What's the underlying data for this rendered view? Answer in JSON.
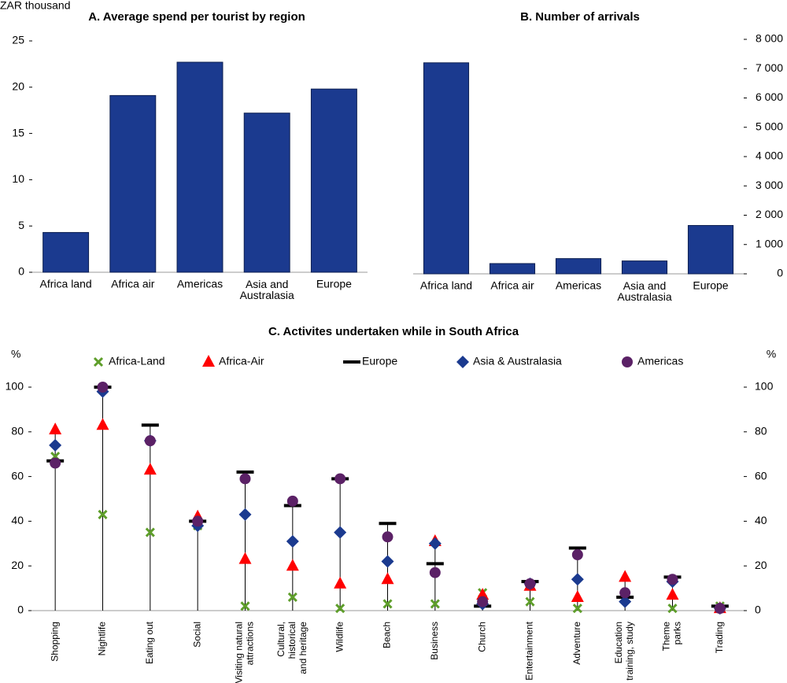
{
  "chart_data": [
    {
      "type": "bar",
      "title": "A. Average spend per tourist by region",
      "y_label": "ZAR thousand",
      "y_axis_side": "left",
      "categories": [
        "Africa land",
        "Africa air",
        "Americas",
        "Asia and\nAustralasia",
        "Europe"
      ],
      "values": [
        4.3,
        19.1,
        22.7,
        17.2,
        19.8
      ],
      "color": "#1b3a8f",
      "ylim": [
        0,
        25
      ],
      "yticks": [
        0,
        5,
        10,
        15,
        20,
        25
      ]
    },
    {
      "type": "bar",
      "title": "B. Number of arrivals",
      "y_axis_side": "right",
      "categories": [
        "Africa land",
        "Africa air",
        "Americas",
        "Asia and\nAustralasia",
        "Europe"
      ],
      "values": [
        7200,
        350,
        520,
        440,
        1650
      ],
      "color": "#1b3a8f",
      "ylim": [
        0,
        8000
      ],
      "yticks": [
        0,
        {
          "value": 1000,
          "label": "1 000"
        },
        {
          "value": 2000,
          "label": "2 000"
        },
        {
          "value": 3000,
          "label": "3 000"
        },
        {
          "value": 4000,
          "label": "4 000"
        },
        {
          "value": 5000,
          "label": "5 000"
        },
        {
          "value": 6000,
          "label": "6 000"
        },
        {
          "value": 7000,
          "label": "7 000"
        },
        {
          "value": 8000,
          "label": "8 000"
        }
      ]
    },
    {
      "type": "dot",
      "title": "C. Activites undertaken while in South Africa",
      "y_label": "%",
      "y_axis_side": "both",
      "categories": [
        "Shopping",
        "Nightlife",
        "Eating out",
        "Social",
        "Visiting natural\nattractions",
        "Cultural,\nhistorical\nand heritage",
        "Wildlife",
        "Beach",
        "Business",
        "Church",
        "Entertainment",
        "Adventure",
        "Education\ntraining, study",
        "Theme\nparks",
        "Trading"
      ],
      "series": [
        {
          "name": "Africa-Land",
          "color": "#5e9e2a",
          "marker": "x",
          "values": [
            69,
            43,
            35,
            38,
            2,
            6,
            1,
            3,
            3,
            8,
            4,
            1,
            5,
            1,
            2
          ]
        },
        {
          "name": "Africa-Air",
          "color": "#ff0000",
          "marker": "triangle",
          "values": [
            81,
            83,
            63,
            42,
            23,
            20,
            12,
            14,
            31,
            7,
            11,
            6,
            15,
            7,
            1
          ]
        },
        {
          "name": "Europe",
          "color": "#000000",
          "marker": "dash",
          "values": [
            67,
            100,
            83,
            40,
            62,
            47,
            59,
            39,
            21,
            2,
            13,
            28,
            6,
            15,
            2
          ]
        },
        {
          "name": "Asia & Australasia",
          "color": "#1b3a8f",
          "marker": "diamond",
          "values": [
            74,
            98,
            76,
            38,
            43,
            31,
            35,
            22,
            30,
            3,
            12,
            14,
            4,
            13,
            1
          ]
        },
        {
          "name": "Americas",
          "color": "#5b2166",
          "marker": "circle",
          "values": [
            66,
            100,
            76,
            40,
            59,
            49,
            59,
            33,
            17,
            4,
            12,
            25,
            8,
            14,
            1
          ]
        }
      ],
      "ylim": [
        0,
        100
      ],
      "yticks": [
        0,
        20,
        40,
        60,
        80,
        100
      ]
    }
  ]
}
